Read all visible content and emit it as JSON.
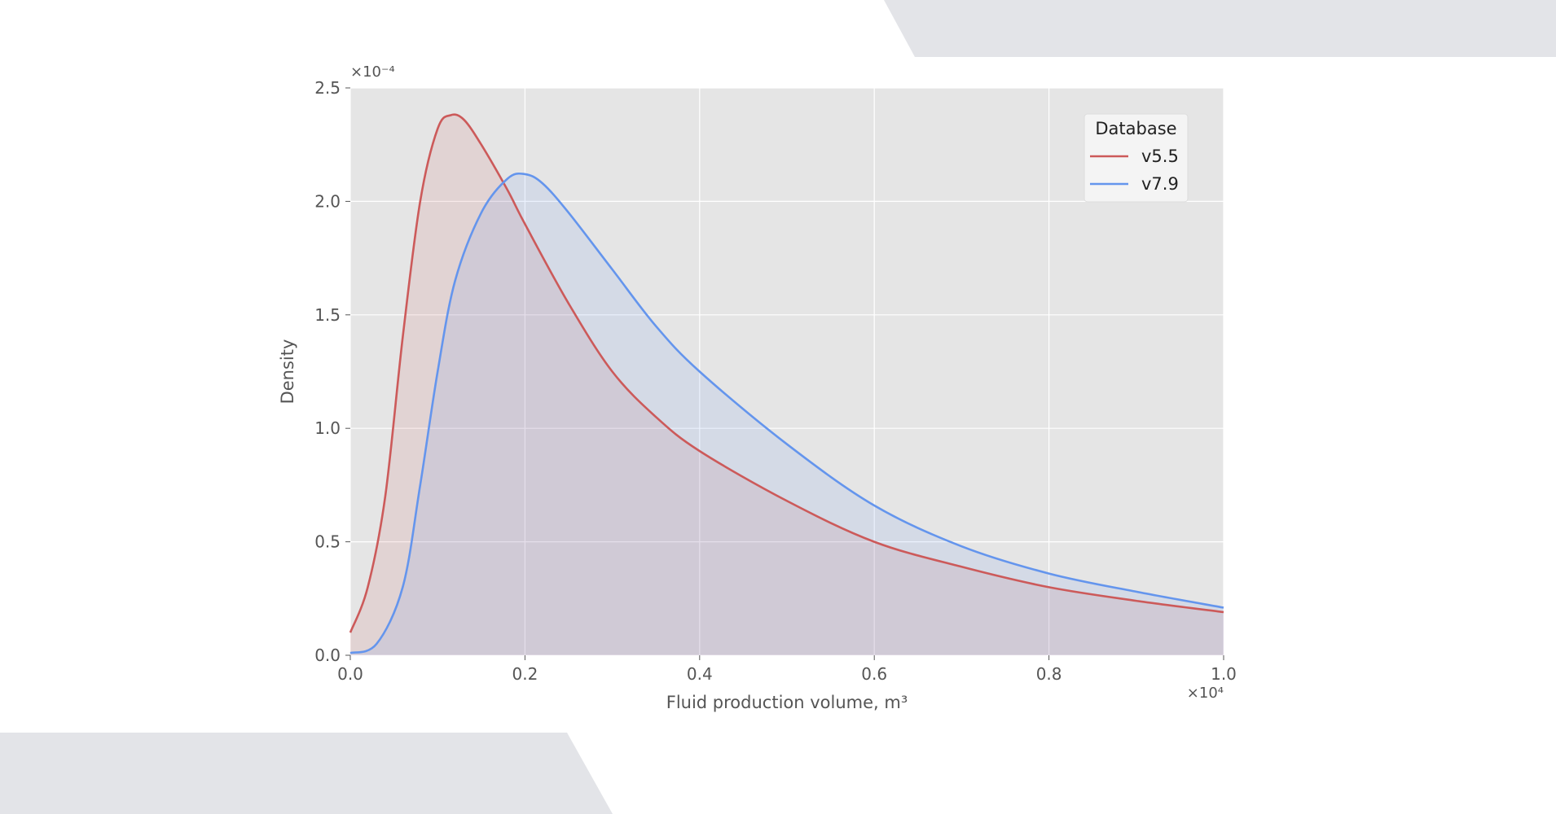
{
  "chart_data": {
    "type": "area",
    "title": "",
    "xlabel": "Fluid production volume, m³",
    "ylabel": "Density",
    "x_multiplier": "×10⁴",
    "y_multiplier": "×10⁻⁴",
    "xlim": [
      0.0,
      1.0
    ],
    "ylim": [
      0.0,
      2.5
    ],
    "x_ticks": [
      "0.0",
      "0.2",
      "0.4",
      "0.6",
      "0.8",
      "1.0"
    ],
    "y_ticks": [
      "0.0",
      "0.5",
      "1.0",
      "1.5",
      "2.0",
      "2.5"
    ],
    "grid": true,
    "legend": {
      "title": "Database",
      "position": "top-right"
    },
    "series": [
      {
        "name": "v5.5",
        "color": "#cc5a5a",
        "points": [
          [
            0.0,
            0.1
          ],
          [
            0.02,
            0.3
          ],
          [
            0.04,
            0.7
          ],
          [
            0.06,
            1.4
          ],
          [
            0.08,
            2.0
          ],
          [
            0.1,
            2.32
          ],
          [
            0.115,
            2.38
          ],
          [
            0.13,
            2.36
          ],
          [
            0.15,
            2.25
          ],
          [
            0.18,
            2.05
          ],
          [
            0.2,
            1.9
          ],
          [
            0.25,
            1.55
          ],
          [
            0.3,
            1.25
          ],
          [
            0.35,
            1.05
          ],
          [
            0.4,
            0.9
          ],
          [
            0.5,
            0.68
          ],
          [
            0.6,
            0.5
          ],
          [
            0.7,
            0.39
          ],
          [
            0.8,
            0.3
          ],
          [
            0.9,
            0.24
          ],
          [
            1.0,
            0.19
          ]
        ]
      },
      {
        "name": "v7.9",
        "color": "#6495ed",
        "points": [
          [
            0.0,
            0.01
          ],
          [
            0.03,
            0.05
          ],
          [
            0.06,
            0.3
          ],
          [
            0.08,
            0.75
          ],
          [
            0.1,
            1.25
          ],
          [
            0.12,
            1.65
          ],
          [
            0.15,
            1.95
          ],
          [
            0.18,
            2.1
          ],
          [
            0.2,
            2.12
          ],
          [
            0.22,
            2.08
          ],
          [
            0.25,
            1.95
          ],
          [
            0.3,
            1.7
          ],
          [
            0.35,
            1.45
          ],
          [
            0.4,
            1.25
          ],
          [
            0.5,
            0.93
          ],
          [
            0.6,
            0.66
          ],
          [
            0.7,
            0.48
          ],
          [
            0.8,
            0.36
          ],
          [
            0.9,
            0.28
          ],
          [
            1.0,
            0.21
          ]
        ]
      }
    ]
  }
}
